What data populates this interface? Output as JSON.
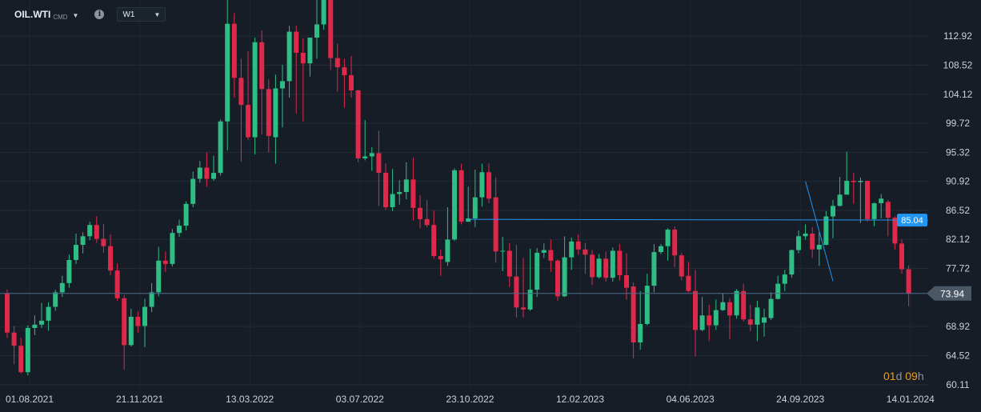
{
  "header": {
    "symbol": "OIL.WTI",
    "symbol_tag": "CMD",
    "info_glyph": "i",
    "timeframe": "W1"
  },
  "countdown": {
    "days": "01",
    "days_unit": "d",
    "hours": "09",
    "hours_unit": "h"
  },
  "colors": {
    "background": "#161d26",
    "up": "#2ebd85",
    "down": "#e0294a",
    "level_line": "#2196f3",
    "price_label": "#4a5866"
  },
  "chart_data": {
    "type": "candlestick",
    "symbol": "OIL.WTI",
    "timeframe": "W1",
    "x_tick_labels": [
      "01.08.2021",
      "21.11.2021",
      "13.03.2022",
      "03.07.2022",
      "23.10.2022",
      "12.02.2023",
      "04.06.2023",
      "24.09.2023",
      "14.01.2024"
    ],
    "y_tick_labels": [
      "112.92",
      "108.52",
      "104.12",
      "99.72",
      "95.32",
      "90.92",
      "86.52",
      "82.12",
      "77.72",
      "73.94",
      "68.92",
      "64.52",
      "60.11"
    ],
    "ylim": [
      59.6,
      118.4
    ],
    "x_tick_bar_index": [
      0,
      16,
      32,
      48,
      64,
      80,
      96,
      112,
      128
    ],
    "grid": true,
    "horizontal_level": {
      "price": 85.04,
      "label": "85.04",
      "from_bar": 67
    },
    "current_price": {
      "price": 73.94,
      "label": "73.94"
    },
    "trend_line": {
      "from": [
        116,
        90.92
      ],
      "to": [
        120,
        75.8
      ]
    },
    "candles": [
      [
        73.9,
        68.0,
        74.5,
        67.2
      ],
      [
        68.0,
        66.0,
        69.0,
        63.2
      ],
      [
        66.0,
        62.0,
        67.2,
        61.8
      ],
      [
        62.0,
        68.7,
        69.1,
        61.5
      ],
      [
        68.7,
        69.2,
        70.6,
        67.6
      ],
      [
        69.2,
        69.8,
        72.5,
        68.7
      ],
      [
        69.8,
        71.9,
        72.6,
        68.3
      ],
      [
        71.9,
        74.1,
        74.5,
        71.3
      ],
      [
        74.1,
        75.5,
        76.6,
        73.4
      ],
      [
        75.5,
        79.0,
        79.8,
        74.8
      ],
      [
        79.0,
        81.3,
        83.0,
        78.4
      ],
      [
        81.3,
        82.6,
        83.2,
        80.0
      ],
      [
        82.6,
        84.3,
        84.8,
        82.0
      ],
      [
        84.3,
        82.2,
        85.6,
        81.6
      ],
      [
        82.2,
        81.1,
        84.5,
        80.1
      ],
      [
        81.1,
        77.4,
        82.9,
        76.7
      ],
      [
        77.4,
        73.2,
        78.5,
        72.8
      ],
      [
        73.2,
        66.1,
        73.7,
        62.4
      ],
      [
        66.1,
        70.4,
        71.6,
        65.9
      ],
      [
        70.4,
        69.0,
        71.2,
        68.0
      ],
      [
        69.0,
        71.9,
        73.1,
        65.8
      ],
      [
        71.9,
        74.1,
        75.5,
        71.1
      ],
      [
        74.1,
        78.9,
        81.0,
        73.5
      ],
      [
        78.9,
        78.4,
        80.3,
        77.2
      ],
      [
        78.4,
        83.1,
        83.7,
        78.0
      ],
      [
        83.1,
        84.2,
        85.1,
        82.5
      ],
      [
        84.2,
        87.5,
        87.9,
        83.5
      ],
      [
        87.5,
        91.3,
        92.4,
        87.0
      ],
      [
        91.3,
        93.0,
        94.0,
        90.7
      ],
      [
        93.0,
        91.3,
        95.3,
        90.1
      ],
      [
        91.3,
        92.2,
        94.8,
        91.0
      ],
      [
        92.2,
        100.0,
        100.3,
        91.8
      ],
      [
        100.0,
        114.8,
        122.5,
        95.6
      ],
      [
        114.8,
        106.6,
        116.4,
        103.6
      ],
      [
        106.6,
        102.5,
        109.5,
        93.9
      ],
      [
        102.5,
        97.6,
        110.6,
        97.2
      ],
      [
        97.6,
        112.0,
        112.7,
        95.0
      ],
      [
        112.0,
        104.9,
        113.8,
        98.0
      ],
      [
        104.9,
        97.8,
        106.4,
        95.3
      ],
      [
        97.6,
        105.0,
        107.1,
        93.6
      ],
      [
        105.0,
        106.1,
        108.6,
        99.1
      ],
      [
        106.1,
        113.6,
        114.5,
        103.6
      ],
      [
        113.6,
        110.4,
        114.5,
        101.2
      ],
      [
        110.4,
        108.8,
        112.6,
        100.0
      ],
      [
        108.8,
        112.7,
        112.7,
        106.8
      ],
      [
        112.7,
        114.7,
        121.6,
        109.5
      ],
      [
        114.7,
        120.4,
        122.0,
        113.9
      ],
      [
        121.0,
        109.6,
        123.7,
        107.8
      ],
      [
        109.6,
        108.2,
        111.8,
        104.5
      ],
      [
        108.2,
        107.0,
        109.5,
        102.1
      ],
      [
        107.0,
        104.7,
        109.9,
        103.6
      ],
      [
        104.7,
        94.4,
        104.8,
        93.8
      ],
      [
        94.4,
        94.7,
        100.2,
        94.1
      ],
      [
        94.7,
        95.2,
        96.1,
        92.5
      ],
      [
        95.2,
        92.2,
        98.6,
        87.2
      ],
      [
        92.2,
        87.0,
        93.6,
        86.6
      ],
      [
        87.0,
        89.0,
        92.8,
        86.4
      ],
      [
        89.0,
        89.3,
        91.1,
        87.4
      ],
      [
        89.3,
        91.2,
        93.8,
        88.2
      ],
      [
        91.2,
        86.9,
        94.5,
        85.0
      ],
      [
        86.9,
        85.2,
        88.8,
        83.8
      ],
      [
        85.2,
        84.3,
        88.1,
        84.0
      ],
      [
        84.3,
        79.6,
        86.5,
        79.2
      ],
      [
        79.6,
        79.1,
        80.6,
        76.6
      ],
      [
        78.7,
        82.1,
        87.0,
        78.1
      ],
      [
        82.1,
        92.6,
        92.9,
        81.9
      ],
      [
        92.6,
        84.8,
        93.6,
        84.4
      ],
      [
        84.8,
        85.3,
        90.1,
        84.8
      ],
      [
        85.3,
        88.5,
        92.7,
        84.0
      ],
      [
        88.5,
        92.3,
        93.6,
        87.1
      ],
      [
        92.3,
        88.3,
        93.6,
        87.6
      ],
      [
        88.5,
        80.3,
        91.5,
        78.6
      ],
      [
        80.3,
        80.4,
        82.5,
        77.3
      ],
      [
        80.4,
        76.5,
        81.6,
        74.9
      ],
      [
        76.5,
        71.8,
        81.3,
        70.3
      ],
      [
        71.8,
        71.5,
        79.3,
        70.3
      ],
      [
        71.5,
        74.5,
        80.7,
        71.3
      ],
      [
        74.5,
        80.1,
        80.8,
        73.4
      ],
      [
        80.1,
        80.5,
        81.5,
        79.3
      ],
      [
        80.5,
        78.9,
        82.1,
        77.2
      ],
      [
        78.9,
        73.5,
        79.1,
        72.8
      ],
      [
        73.5,
        79.4,
        82.6,
        73.4
      ],
      [
        79.4,
        81.8,
        82.4,
        77.5
      ],
      [
        81.8,
        80.6,
        82.9,
        79.8
      ],
      [
        80.6,
        79.8,
        81.6,
        76.9
      ],
      [
        79.8,
        76.4,
        80.5,
        75.2
      ],
      [
        76.4,
        79.2,
        79.9,
        76.2
      ],
      [
        79.2,
        76.3,
        80.3,
        75.7
      ],
      [
        76.3,
        80.4,
        80.9,
        75.7
      ],
      [
        80.4,
        76.7,
        81.4,
        75.9
      ],
      [
        76.7,
        74.8,
        80.0,
        73.0
      ],
      [
        75.0,
        66.5,
        75.6,
        64.1
      ],
      [
        66.5,
        69.3,
        74.3,
        65.4
      ],
      [
        69.3,
        75.1,
        76.9,
        69.1
      ],
      [
        75.1,
        80.2,
        81.4,
        74.1
      ],
      [
        80.2,
        81.1,
        81.4,
        79.9
      ],
      [
        81.1,
        83.6,
        83.8,
        78.9
      ],
      [
        83.6,
        79.7,
        84.1,
        77.9
      ],
      [
        79.7,
        76.5,
        80.1,
        75.9
      ],
      [
        76.6,
        74.3,
        78.7,
        74.1
      ],
      [
        74.3,
        68.4,
        77.5,
        64.4
      ],
      [
        68.4,
        70.6,
        73.4,
        68.2
      ],
      [
        70.6,
        69.1,
        72.2,
        66.7
      ],
      [
        69.1,
        71.4,
        73.0,
        68.4
      ],
      [
        71.4,
        72.6,
        73.9,
        71.3
      ],
      [
        72.6,
        70.6,
        73.2,
        67.0
      ],
      [
        70.6,
        74.3,
        74.6,
        70.1
      ],
      [
        74.3,
        70.0,
        75.4,
        69.7
      ],
      [
        70.0,
        69.2,
        72.2,
        68.2
      ],
      [
        69.2,
        71.8,
        72.8,
        66.7
      ],
      [
        69.5,
        70.3,
        71.6,
        67.4
      ],
      [
        70.2,
        73.1,
        74.1,
        69.9
      ],
      [
        73.1,
        75.4,
        76.6,
        73.0
      ],
      [
        75.4,
        76.8,
        77.5,
        74.3
      ],
      [
        76.8,
        80.5,
        80.6,
        76.3
      ],
      [
        80.5,
        82.6,
        83.5,
        80.0
      ],
      [
        82.6,
        83.0,
        84.4,
        82.1
      ],
      [
        83.0,
        80.6,
        84.0,
        79.3
      ],
      [
        80.6,
        81.3,
        83.2,
        78.1
      ],
      [
        81.3,
        85.6,
        86.4,
        81.2
      ],
      [
        85.6,
        87.2,
        88.1,
        82.3
      ],
      [
        87.2,
        88.9,
        91.6,
        87.1
      ],
      [
        88.9,
        91.0,
        95.4,
        90.8
      ],
      [
        91.0,
        90.8,
        92.2,
        87.5
      ],
      [
        90.8,
        91.0,
        91.5,
        84.6
      ],
      [
        91.0,
        85.2,
        91.0,
        84.8
      ],
      [
        85.2,
        87.6,
        87.7,
        84.1
      ],
      [
        87.6,
        88.3,
        89.0,
        85.3
      ],
      [
        87.8,
        85.4,
        88.1,
        82.6
      ],
      [
        85.4,
        81.5,
        85.6,
        80.6
      ],
      [
        81.5,
        77.6,
        82.1,
        76.9
      ],
      [
        77.6,
        73.9,
        78.2,
        72.0
      ]
    ]
  }
}
